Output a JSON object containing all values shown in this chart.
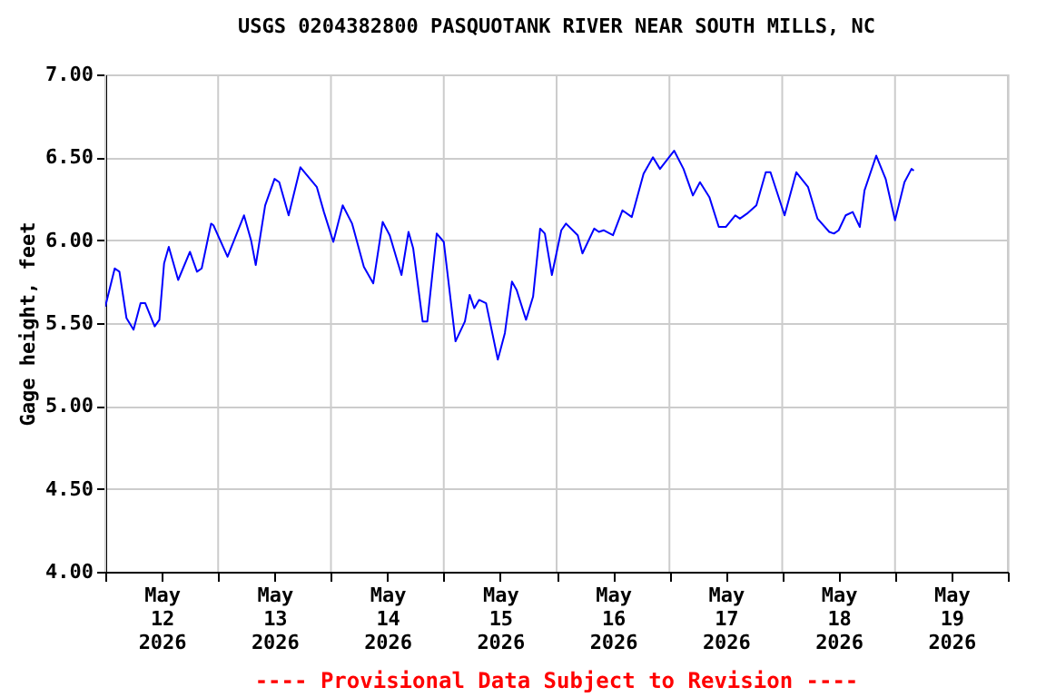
{
  "chart_data": {
    "type": "line",
    "title": "USGS 0204382800 PASQUOTANK RIVER NEAR SOUTH MILLS, NC",
    "ylabel": "Gage height, feet",
    "annotations": [
      "---- Provisional Data Subject to Revision ----"
    ],
    "x": [
      "2026-05-12T00:00",
      "2026-05-12T02:00",
      "2026-05-12T03:00",
      "2026-05-12T04:30",
      "2026-05-12T06:00",
      "2026-05-12T07:30",
      "2026-05-12T08:30",
      "2026-05-12T10:30",
      "2026-05-12T11:30",
      "2026-05-12T12:30",
      "2026-05-12T13:30",
      "2026-05-12T15:30",
      "2026-05-12T18:00",
      "2026-05-12T19:30",
      "2026-05-12T20:30",
      "2026-05-12T22:30",
      "2026-05-12T23:00",
      "2026-05-13T02:00",
      "2026-05-13T05:30",
      "2026-05-13T07:00",
      "2026-05-13T08:00",
      "2026-05-13T10:00",
      "2026-05-13T12:00",
      "2026-05-13T13:00",
      "2026-05-13T15:00",
      "2026-05-13T17:30",
      "2026-05-13T21:00",
      "2026-05-13T22:30",
      "2026-05-14T00:30",
      "2026-05-14T02:30",
      "2026-05-14T04:30",
      "2026-05-14T07:00",
      "2026-05-14T09:00",
      "2026-05-14T11:00",
      "2026-05-14T12:30",
      "2026-05-14T15:00",
      "2026-05-14T16:30",
      "2026-05-14T17:30",
      "2026-05-14T19:30",
      "2026-05-14T20:30",
      "2026-05-14T22:30",
      "2026-05-15T00:00",
      "2026-05-15T02:30",
      "2026-05-15T04:30",
      "2026-05-15T05:30",
      "2026-05-15T06:30",
      "2026-05-15T07:30",
      "2026-05-15T09:00",
      "2026-05-15T11:30",
      "2026-05-15T13:00",
      "2026-05-15T14:30",
      "2026-05-15T15:30",
      "2026-05-15T17:30",
      "2026-05-15T19:00",
      "2026-05-15T20:30",
      "2026-05-15T21:30",
      "2026-05-15T23:00",
      "2026-05-16T01:00",
      "2026-05-16T02:00",
      "2026-05-16T04:30",
      "2026-05-16T05:30",
      "2026-05-16T08:00",
      "2026-05-16T09:00",
      "2026-05-16T10:00",
      "2026-05-16T12:00",
      "2026-05-16T14:00",
      "2026-05-16T16:00",
      "2026-05-16T18:30",
      "2026-05-16T20:30",
      "2026-05-16T22:00",
      "2026-05-17T01:00",
      "2026-05-17T03:00",
      "2026-05-17T05:00",
      "2026-05-17T06:30",
      "2026-05-17T08:30",
      "2026-05-17T10:30",
      "2026-05-17T12:00",
      "2026-05-17T14:00",
      "2026-05-17T15:00",
      "2026-05-17T16:30",
      "2026-05-17T18:30",
      "2026-05-17T20:30",
      "2026-05-17T21:30",
      "2026-05-18T00:30",
      "2026-05-18T03:00",
      "2026-05-18T05:30",
      "2026-05-18T07:30",
      "2026-05-18T10:00",
      "2026-05-18T11:00",
      "2026-05-18T12:00",
      "2026-05-18T13:30",
      "2026-05-18T15:00",
      "2026-05-18T16:30",
      "2026-05-18T17:30",
      "2026-05-18T20:00",
      "2026-05-18T22:00",
      "2026-05-19T00:00",
      "2026-05-19T02:00",
      "2026-05-19T03:30",
      "2026-05-19T04:00"
    ],
    "series": [
      {
        "color": "#0000ff",
        "values": [
          5.6,
          5.83,
          5.81,
          5.53,
          5.46,
          5.62,
          5.62,
          5.48,
          5.52,
          5.86,
          5.96,
          5.76,
          5.93,
          5.81,
          5.83,
          6.1,
          6.09,
          5.9,
          6.15,
          6.0,
          5.85,
          6.21,
          6.37,
          6.35,
          6.15,
          6.44,
          6.32,
          6.17,
          5.99,
          6.21,
          6.1,
          5.84,
          5.74,
          6.11,
          6.03,
          5.79,
          6.05,
          5.95,
          5.51,
          5.51,
          6.04,
          5.99,
          5.39,
          5.51,
          5.67,
          5.59,
          5.64,
          5.62,
          5.28,
          5.44,
          5.75,
          5.7,
          5.52,
          5.66,
          6.07,
          6.04,
          5.79,
          6.06,
          6.1,
          6.03,
          5.92,
          6.07,
          6.05,
          6.06,
          6.03,
          6.18,
          6.14,
          6.4,
          6.5,
          6.43,
          6.54,
          6.43,
          6.27,
          6.35,
          6.26,
          6.08,
          6.08,
          6.15,
          6.13,
          6.16,
          6.21,
          6.41,
          6.41,
          6.15,
          6.41,
          6.32,
          6.13,
          6.05,
          6.04,
          6.06,
          6.15,
          6.17,
          6.08,
          6.3,
          6.51,
          6.37,
          6.12,
          6.35,
          6.43,
          6.42
        ]
      }
    ],
    "xlim": [
      "2026-05-12T00:00",
      "2026-05-20T00:00"
    ],
    "xticks": [
      {
        "value": "2026-05-12T00:00",
        "label": null
      },
      {
        "value": "2026-05-12T12:00",
        "label": "May 12 2026"
      },
      {
        "value": "2026-05-13T00:00",
        "label": null
      },
      {
        "value": "2026-05-13T12:00",
        "label": "May 13 2026"
      },
      {
        "value": "2026-05-14T00:00",
        "label": null
      },
      {
        "value": "2026-05-14T12:00",
        "label": "May 14 2026"
      },
      {
        "value": "2026-05-15T00:00",
        "label": null
      },
      {
        "value": "2026-05-15T12:00",
        "label": "May 15 2026"
      },
      {
        "value": "2026-05-16T00:00",
        "label": null
      },
      {
        "value": "2026-05-16T12:00",
        "label": "May 16 2026"
      },
      {
        "value": "2026-05-17T00:00",
        "label": null
      },
      {
        "value": "2026-05-17T12:00",
        "label": "May 17 2026"
      },
      {
        "value": "2026-05-18T00:00",
        "label": null
      },
      {
        "value": "2026-05-18T12:00",
        "label": "May 18 2026"
      },
      {
        "value": "2026-05-19T00:00",
        "label": null
      },
      {
        "value": "2026-05-19T12:00",
        "label": "May 19 2026"
      },
      {
        "value": "2026-05-20T00:00",
        "label": null
      }
    ],
    "ylim": [
      4,
      7
    ],
    "yticks": [
      {
        "value": 4,
        "label": "4.00"
      },
      {
        "value": 4.5,
        "label": "4.50"
      },
      {
        "value": 5,
        "label": "5.00"
      },
      {
        "value": 5.5,
        "label": "5.50"
      },
      {
        "value": 6,
        "label": "6.00"
      },
      {
        "value": 6.5,
        "label": "6.50"
      },
      {
        "value": 7,
        "label": "7.00"
      }
    ],
    "grid": true,
    "legend": false,
    "marker": "none",
    "line_style": "solid"
  }
}
